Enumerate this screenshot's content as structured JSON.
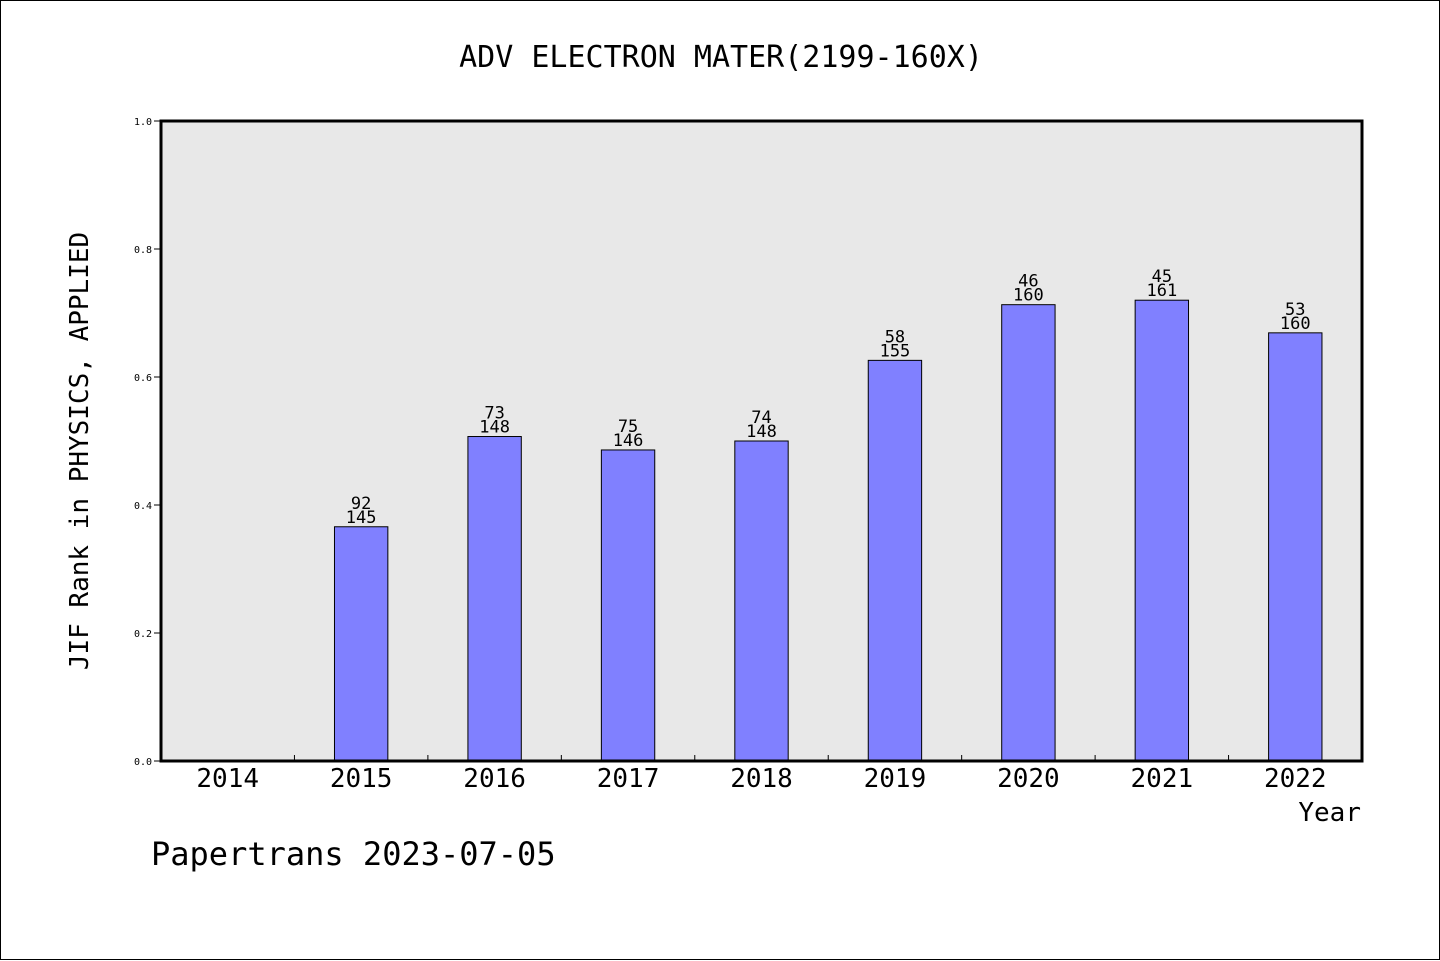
{
  "chart_data": {
    "type": "bar",
    "title": "ADV ELECTRON MATER(2199-160X)",
    "ylabel": "JIF Rank in PHYSICS, APPLIED",
    "xlabel": "Year",
    "categories": [
      "2014",
      "2015",
      "2016",
      "2017",
      "2018",
      "2019",
      "2020",
      "2021",
      "2022"
    ],
    "values": [
      null,
      0.366,
      0.507,
      0.486,
      0.5,
      0.626,
      0.713,
      0.72,
      0.669
    ],
    "rank_labels": [
      {
        "rank": "",
        "total": ""
      },
      {
        "rank": "92",
        "total": "145"
      },
      {
        "rank": "73",
        "total": "148"
      },
      {
        "rank": "75",
        "total": "146"
      },
      {
        "rank": "74",
        "total": "148"
      },
      {
        "rank": "58",
        "total": "155"
      },
      {
        "rank": "46",
        "total": "160"
      },
      {
        "rank": "45",
        "total": "161"
      },
      {
        "rank": "53",
        "total": "160"
      }
    ],
    "ylim": [
      0,
      1.0
    ],
    "yticks": [
      "0.0",
      "0.2",
      "0.4",
      "0.6",
      "0.8",
      "1.0"
    ],
    "grid": false,
    "colors": {
      "bar": "#8080ff",
      "plot_bg": "#e8e8e8",
      "axis": "#000000"
    }
  },
  "footer": {
    "watermark": "Papertrans 2023-07-05"
  }
}
